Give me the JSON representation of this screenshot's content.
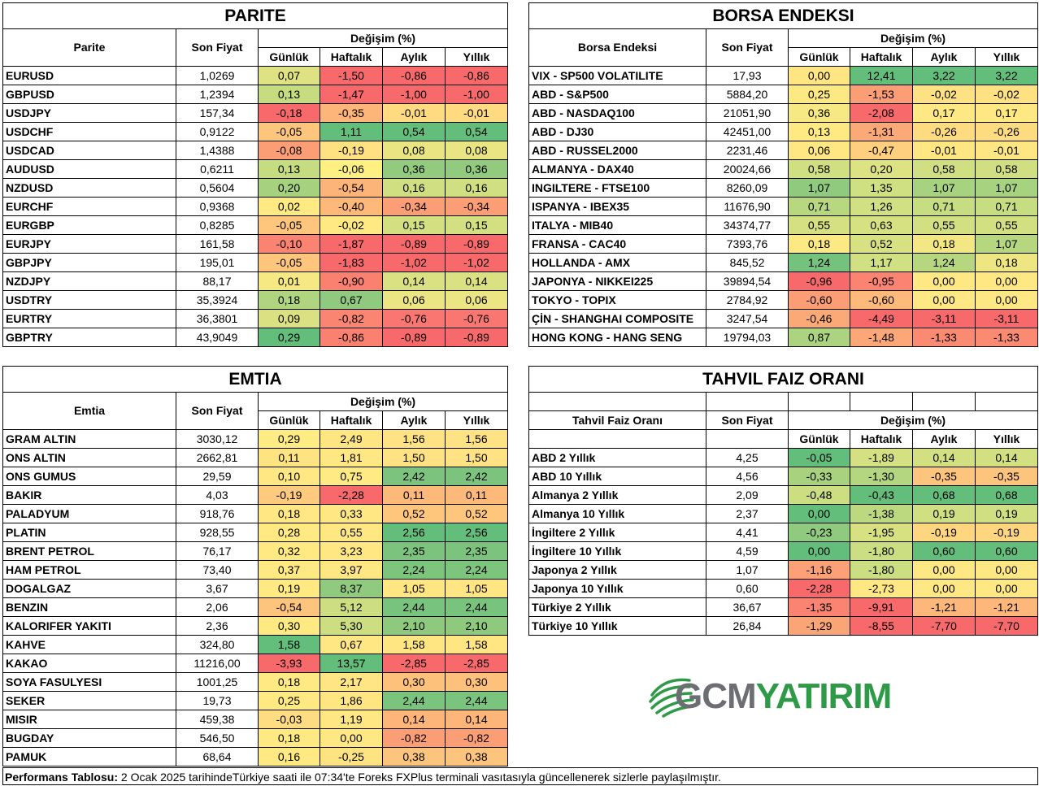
{
  "parite": {
    "title": "PARITE",
    "col_name": "Parite",
    "col_price": "Son Fiyat",
    "col_change": "Değişim (%)",
    "periods": [
      "Günlük",
      "Haftalık",
      "Aylık",
      "Yıllık"
    ],
    "rows": [
      {
        "name": "EURUSD",
        "price": "1,0269",
        "vals": [
          "0,07",
          "-1,50",
          "-0,86",
          "-0,86"
        ]
      },
      {
        "name": "GBPUSD",
        "price": "1,2394",
        "vals": [
          "0,13",
          "-1,47",
          "-1,00",
          "-1,00"
        ]
      },
      {
        "name": "USDJPY",
        "price": "157,34",
        "vals": [
          "-0,18",
          "-0,35",
          "-0,01",
          "-0,01"
        ]
      },
      {
        "name": "USDCHF",
        "price": "0,9122",
        "vals": [
          "-0,05",
          "1,11",
          "0,54",
          "0,54"
        ]
      },
      {
        "name": "USDCAD",
        "price": "1,4388",
        "vals": [
          "-0,08",
          "-0,19",
          "0,08",
          "0,08"
        ]
      },
      {
        "name": "AUDUSD",
        "price": "0,6211",
        "vals": [
          "0,13",
          "-0,06",
          "0,36",
          "0,36"
        ]
      },
      {
        "name": "NZDUSD",
        "price": "0,5604",
        "vals": [
          "0,20",
          "-0,54",
          "0,16",
          "0,16"
        ]
      },
      {
        "name": "EURCHF",
        "price": "0,9368",
        "vals": [
          "0,02",
          "-0,40",
          "-0,34",
          "-0,34"
        ]
      },
      {
        "name": "EURGBP",
        "price": "0,8285",
        "vals": [
          "-0,05",
          "-0,02",
          "0,15",
          "0,15"
        ]
      },
      {
        "name": "EURJPY",
        "price": "161,58",
        "vals": [
          "-0,10",
          "-1,87",
          "-0,89",
          "-0,89"
        ]
      },
      {
        "name": "GBPJPY",
        "price": "195,01",
        "vals": [
          "-0,05",
          "-1,83",
          "-1,02",
          "-1,02"
        ]
      },
      {
        "name": "NZDJPY",
        "price": "88,17",
        "vals": [
          "0,01",
          "-0,90",
          "0,14",
          "0,14"
        ]
      },
      {
        "name": "USDTRY",
        "price": "35,3924",
        "vals": [
          "0,18",
          "0,67",
          "0,06",
          "0,06"
        ]
      },
      {
        "name": "EURTRY",
        "price": "36,3801",
        "vals": [
          "0,09",
          "-0,82",
          "-0,76",
          "-0,76"
        ]
      },
      {
        "name": "GBPTRY",
        "price": "43,9049",
        "vals": [
          "0,29",
          "-0,86",
          "-0,89",
          "-0,89"
        ]
      }
    ]
  },
  "borsa": {
    "title": "BORSA ENDEKSI",
    "col_name": "Borsa Endeksi",
    "col_price": "Son Fiyat",
    "col_change": "Değişim (%)",
    "periods": [
      "Günlük",
      "Haftalık",
      "Aylık",
      "Yıllık"
    ],
    "rows": [
      {
        "name": "VIX  - SP500 VOLATILITE",
        "price": "17,93",
        "vals": [
          "0,00",
          "12,41",
          "3,22",
          "3,22"
        ]
      },
      {
        "name": "ABD - S&P500",
        "price": "5884,20",
        "vals": [
          "0,25",
          "-1,53",
          "-0,02",
          "-0,02"
        ]
      },
      {
        "name": "ABD - NASDAQ100",
        "price": "21051,90",
        "vals": [
          "0,36",
          "-2,08",
          "0,17",
          "0,17"
        ]
      },
      {
        "name": "ABD - DJ30",
        "price": "42451,00",
        "vals": [
          "0,13",
          "-1,31",
          "-0,26",
          "-0,26"
        ]
      },
      {
        "name": "ABD - RUSSEL2000",
        "price": "2231,46",
        "vals": [
          "0,06",
          "-0,47",
          "-0,01",
          "-0,01"
        ]
      },
      {
        "name": "ALMANYA - DAX40",
        "price": "20024,66",
        "vals": [
          "0,58",
          "0,20",
          "0,58",
          "0,58"
        ]
      },
      {
        "name": "INGILTERE - FTSE100",
        "price": "8260,09",
        "vals": [
          "1,07",
          "1,35",
          "1,07",
          "1,07"
        ]
      },
      {
        "name": "ISPANYA - IBEX35",
        "price": "11676,90",
        "vals": [
          "0,71",
          "1,26",
          "0,71",
          "0,71"
        ]
      },
      {
        "name": "ITALYA - MIB40",
        "price": "34374,77",
        "vals": [
          "0,55",
          "0,63",
          "0,55",
          "0,55"
        ]
      },
      {
        "name": "FRANSA - CAC40",
        "price": "7393,76",
        "vals": [
          "0,18",
          "0,52",
          "0,18",
          "1,07"
        ]
      },
      {
        "name": "HOLLANDA - AMX",
        "price": "845,52",
        "vals": [
          "1,24",
          "1,17",
          "1,24",
          "0,18"
        ]
      },
      {
        "name": "JAPONYA - NIKKEI225",
        "price": "39894,54",
        "vals": [
          "-0,96",
          "-0,95",
          "0,00",
          "0,00"
        ]
      },
      {
        "name": "TOKYO - TOPIX",
        "price": "2784,92",
        "vals": [
          "-0,60",
          "-0,60",
          "0,00",
          "0,00"
        ]
      },
      {
        "name": "ÇİN - SHANGHAI COMPOSITE",
        "price": "3247,54",
        "vals": [
          "-0,46",
          "-4,49",
          "-3,11",
          "-3,11"
        ]
      },
      {
        "name": "HONG KONG - HANG SENG",
        "price": "19794,03",
        "vals": [
          "0,87",
          "-1,48",
          "-1,33",
          "-1,33"
        ]
      }
    ]
  },
  "emtia": {
    "title": "EMTIA",
    "col_name": "Emtia",
    "col_price": "Son Fiyat",
    "col_change": "Değişim (%)",
    "periods": [
      "Günlük",
      "Haftalık",
      "Aylık",
      "Yıllık"
    ],
    "rows": [
      {
        "name": "GRAM ALTIN",
        "price": "3030,12",
        "vals": [
          "0,29",
          "2,49",
          "1,56",
          "1,56"
        ]
      },
      {
        "name": "ONS ALTIN",
        "price": "2662,81",
        "vals": [
          "0,11",
          "1,81",
          "1,50",
          "1,50"
        ]
      },
      {
        "name": "ONS GUMUS",
        "price": "29,59",
        "vals": [
          "0,10",
          "0,75",
          "2,42",
          "2,42"
        ]
      },
      {
        "name": "BAKIR",
        "price": "4,03",
        "vals": [
          "-0,19",
          "-2,28",
          "0,11",
          "0,11"
        ]
      },
      {
        "name": "PALADYUM",
        "price": "918,76",
        "vals": [
          "0,18",
          "0,33",
          "0,52",
          "0,52"
        ]
      },
      {
        "name": "PLATIN",
        "price": "928,55",
        "vals": [
          "0,28",
          "0,55",
          "2,56",
          "2,56"
        ]
      },
      {
        "name": "BRENT PETROL",
        "price": "76,17",
        "vals": [
          "0,32",
          "3,23",
          "2,35",
          "2,35"
        ]
      },
      {
        "name": "HAM PETROL",
        "price": "73,40",
        "vals": [
          "0,37",
          "3,97",
          "2,24",
          "2,24"
        ]
      },
      {
        "name": "DOGALGAZ",
        "price": "3,67",
        "vals": [
          "0,19",
          "8,37",
          "1,05",
          "1,05"
        ]
      },
      {
        "name": "BENZIN",
        "price": "2,06",
        "vals": [
          "-0,54",
          "5,12",
          "2,44",
          "2,44"
        ]
      },
      {
        "name": "KALORIFER YAKITI",
        "price": "2,36",
        "vals": [
          "0,30",
          "5,30",
          "2,10",
          "2,10"
        ]
      },
      {
        "name": "KAHVE",
        "price": "324,80",
        "vals": [
          "1,58",
          "0,67",
          "1,58",
          "1,58"
        ]
      },
      {
        "name": "KAKAO",
        "price": "11216,00",
        "vals": [
          "-3,93",
          "13,57",
          "-2,85",
          "-2,85"
        ]
      },
      {
        "name": "SOYA FASULYESI",
        "price": "1001,25",
        "vals": [
          "0,18",
          "2,17",
          "0,30",
          "0,30"
        ]
      },
      {
        "name": "SEKER",
        "price": "19,73",
        "vals": [
          "0,25",
          "1,86",
          "2,44",
          "2,44"
        ]
      },
      {
        "name": "MISIR",
        "price": "459,38",
        "vals": [
          "-0,03",
          "1,19",
          "0,14",
          "0,14"
        ]
      },
      {
        "name": "BUGDAY",
        "price": "546,50",
        "vals": [
          "0,18",
          "0,00",
          "-0,82",
          "-0,82"
        ]
      },
      {
        "name": "PAMUK",
        "price": "68,64",
        "vals": [
          "0,16",
          "-0,25",
          "0,38",
          "0,38"
        ]
      }
    ]
  },
  "tahvil": {
    "title": "TAHVIL FAIZ ORANI",
    "col_name": "Tahvil Faiz Oranı",
    "col_price": "Son Fiyat",
    "col_change": "Değişim (%)",
    "periods": [
      "Günlük",
      "Haftalık",
      "Aylık",
      "Yıllık"
    ],
    "rows": [
      {
        "name": "ABD 2 Yıllık",
        "price": "4,25",
        "vals": [
          "-0,05",
          "-1,89",
          "0,14",
          "0,14"
        ]
      },
      {
        "name": "ABD 10 Yıllık",
        "price": "4,56",
        "vals": [
          "-0,33",
          "-1,30",
          "-0,35",
          "-0,35"
        ]
      },
      {
        "name": "Almanya 2 Yıllık",
        "price": "2,09",
        "vals": [
          "-0,48",
          "-0,43",
          "0,68",
          "0,68"
        ]
      },
      {
        "name": "Almanya 10 Yıllık",
        "price": "2,37",
        "vals": [
          "0,00",
          "-1,38",
          "0,19",
          "0,19"
        ]
      },
      {
        "name": "İngiltere 2 Yıllık",
        "price": "4,41",
        "vals": [
          "-0,23",
          "-1,95",
          "-0,19",
          "-0,19"
        ]
      },
      {
        "name": "İngiltere 10 Yıllık",
        "price": "4,59",
        "vals": [
          "0,00",
          "-1,80",
          "0,60",
          "0,60"
        ]
      },
      {
        "name": "Japonya 2 Yıllık",
        "price": "1,07",
        "vals": [
          "-1,16",
          "-1,80",
          "0,00",
          "0,00"
        ]
      },
      {
        "name": "Japonya 10 Yıllık",
        "price": "0,60",
        "vals": [
          "-2,28",
          "-2,73",
          "0,00",
          "0,00"
        ]
      },
      {
        "name": "Türkiye 2 Yıllık",
        "price": "36,67",
        "vals": [
          "-1,35",
          "-9,91",
          "-1,21",
          "-1,21"
        ]
      },
      {
        "name": "Türkiye 10 Yıllık",
        "price": "26,84",
        "vals": [
          "-1,29",
          "-8,55",
          "-7,70",
          "-7,70"
        ]
      }
    ]
  },
  "footer": {
    "label": "Performans Tablosu:",
    "text": " 2 Ocak 2025 tarihindeTürkiye saati ile 07:34'te Foreks FXPlus terminali vasıtasıyla güncellenerek sizlerle paylaşılmıştır."
  },
  "logo": {
    "text_gcm": "GCM",
    "text_yatirim": "YATIRIM",
    "color_gcm": "#6d6e71",
    "color_yatirim": "#2e9a47"
  },
  "colors": {
    "deep_red": "#f8696b",
    "light_red": "#fb9d75",
    "orange": "#fdc47d",
    "yellow": "#ffeb84",
    "light_green": "#c0dc81",
    "green": "#8ac97e",
    "deep_green": "#63be7b"
  },
  "cell_colors": {
    "parite": [
      [
        "#dfe282",
        "#f8696b",
        "#f8696b",
        "#f8696b"
      ],
      [
        "#c6dc81",
        "#f8696b",
        "#f8696b",
        "#f8696b"
      ],
      [
        "#f8696b",
        "#fdb579",
        "#fedb81",
        "#fedb81"
      ],
      [
        "#fdc67c",
        "#63be7b",
        "#63be7b",
        "#63be7b"
      ],
      [
        "#fc9e75",
        "#fee282",
        "#e9e582",
        "#e9e582"
      ],
      [
        "#c6dc81",
        "#fff083",
        "#92cb7e",
        "#92cb7e"
      ],
      [
        "#a6d27f",
        "#fdb479",
        "#cfdf82",
        "#cfdf82"
      ],
      [
        "#fee983",
        "#fdb87a",
        "#fb9d75",
        "#fb9d75"
      ],
      [
        "#fdc67c",
        "#fee983",
        "#d3e082",
        "#d3e082"
      ],
      [
        "#fa8372",
        "#f8696b",
        "#f8696b",
        "#f8696b"
      ],
      [
        "#fdc67c",
        "#f8696b",
        "#f8696b",
        "#f8696b"
      ],
      [
        "#f6e883",
        "#fa8070",
        "#d9e182",
        "#d9e182"
      ],
      [
        "#b0d580",
        "#8fca7e",
        "#ece583",
        "#ece583"
      ],
      [
        "#dae182",
        "#fa8671",
        "#f97770",
        "#f97770"
      ],
      [
        "#63be7b",
        "#fa8070",
        "#f8696b",
        "#f8696b"
      ]
    ],
    "borsa": [
      [
        "#ffe683",
        "#63be7b",
        "#63be7b",
        "#63be7b"
      ],
      [
        "#fde983",
        "#fb9d75",
        "#fee182",
        "#fee182"
      ],
      [
        "#f6e883",
        "#f8696b",
        "#fee883",
        "#fee883"
      ],
      [
        "#ffe983",
        "#fba977",
        "#fddb81",
        "#fddb81"
      ],
      [
        "#ffe883",
        "#fdcf7f",
        "#fee682",
        "#fee682"
      ],
      [
        "#d0df82",
        "#dde282",
        "#cfdf82",
        "#cfdf82"
      ],
      [
        "#8fca7e",
        "#cee082",
        "#a7d280",
        "#a7d280"
      ],
      [
        "#b8d880",
        "#d0e082",
        "#c7dd81",
        "#c7dd81"
      ],
      [
        "#d4e082",
        "#d6e182",
        "#d2e082",
        "#d2e082"
      ],
      [
        "#fde983",
        "#d7e182",
        "#f3e783",
        "#b6d780"
      ],
      [
        "#74c27d",
        "#d1e082",
        "#b6d780",
        "#eee683"
      ],
      [
        "#f8696b",
        "#fa8372",
        "#fee883",
        "#fee883"
      ],
      [
        "#fb9d75",
        "#fdba7b",
        "#fee883",
        "#fee883"
      ],
      [
        "#fbaa77",
        "#f8696b",
        "#f8696b",
        "#f8696b"
      ],
      [
        "#abd380",
        "#fba777",
        "#fa8a72",
        "#fa8a72"
      ]
    ],
    "emtia": [
      [
        "#ffeb84",
        "#ffe683",
        "#fee283",
        "#fee283"
      ],
      [
        "#fee383",
        "#ffe783",
        "#fee283",
        "#fee283"
      ],
      [
        "#ffe883",
        "#ffea84",
        "#7cc47d",
        "#7cc47d"
      ],
      [
        "#feca7d",
        "#f8696b",
        "#fdb97a",
        "#fdb97a"
      ],
      [
        "#ffe883",
        "#ffe883",
        "#fdc67c",
        "#fdc67c"
      ],
      [
        "#fee983",
        "#ffe883",
        "#63be7b",
        "#63be7b"
      ],
      [
        "#fee983",
        "#ffe883",
        "#7cc47d",
        "#7cc47d"
      ],
      [
        "#fee983",
        "#ffe883",
        "#7dc57d",
        "#7dc57d"
      ],
      [
        "#fee983",
        "#8fca7e",
        "#ffe683",
        "#ffe683"
      ],
      [
        "#fdc47d",
        "#ccde81",
        "#78c37d",
        "#78c37d"
      ],
      [
        "#fee983",
        "#ccde81",
        "#8ec97e",
        "#8ec97e"
      ],
      [
        "#63be7b",
        "#ffe883",
        "#ffe683",
        "#ffe683"
      ],
      [
        "#f8696b",
        "#63be7b",
        "#f8696b",
        "#f8696b"
      ],
      [
        "#fee983",
        "#ffe583",
        "#fdc17c",
        "#fdc17c"
      ],
      [
        "#fee983",
        "#ffe683",
        "#7ac47d",
        "#7ac47d"
      ],
      [
        "#fedd82",
        "#ffe783",
        "#fdb57a",
        "#fdb57a"
      ],
      [
        "#fee983",
        "#ffe883",
        "#fb9d75",
        "#fb9d75"
      ],
      [
        "#fee983",
        "#fee383",
        "#fdc47d",
        "#fdc47d"
      ]
    ],
    "tahvil": [
      [
        "#63be7b",
        "#d4e082",
        "#d2e082",
        "#d2e082"
      ],
      [
        "#a9d27f",
        "#b4d680",
        "#fdc47d",
        "#fdc47d"
      ],
      [
        "#cbde81",
        "#63be7b",
        "#63be7b",
        "#63be7b"
      ],
      [
        "#63be7b",
        "#bcd980",
        "#cfdf82",
        "#cfdf82"
      ],
      [
        "#8fca7e",
        "#d7e182",
        "#fed680",
        "#fed680"
      ],
      [
        "#63be7b",
        "#cbde81",
        "#63be7b",
        "#63be7b"
      ],
      [
        "#fba077",
        "#cbde81",
        "#fee883",
        "#fee883"
      ],
      [
        "#f8696b",
        "#ffe883",
        "#fee883",
        "#fee883"
      ],
      [
        "#fa8471",
        "#f8696b",
        "#fdb77a",
        "#fdb77a"
      ],
      [
        "#fba577",
        "#f8696b",
        "#f8696b",
        "#f8696b"
      ]
    ]
  }
}
